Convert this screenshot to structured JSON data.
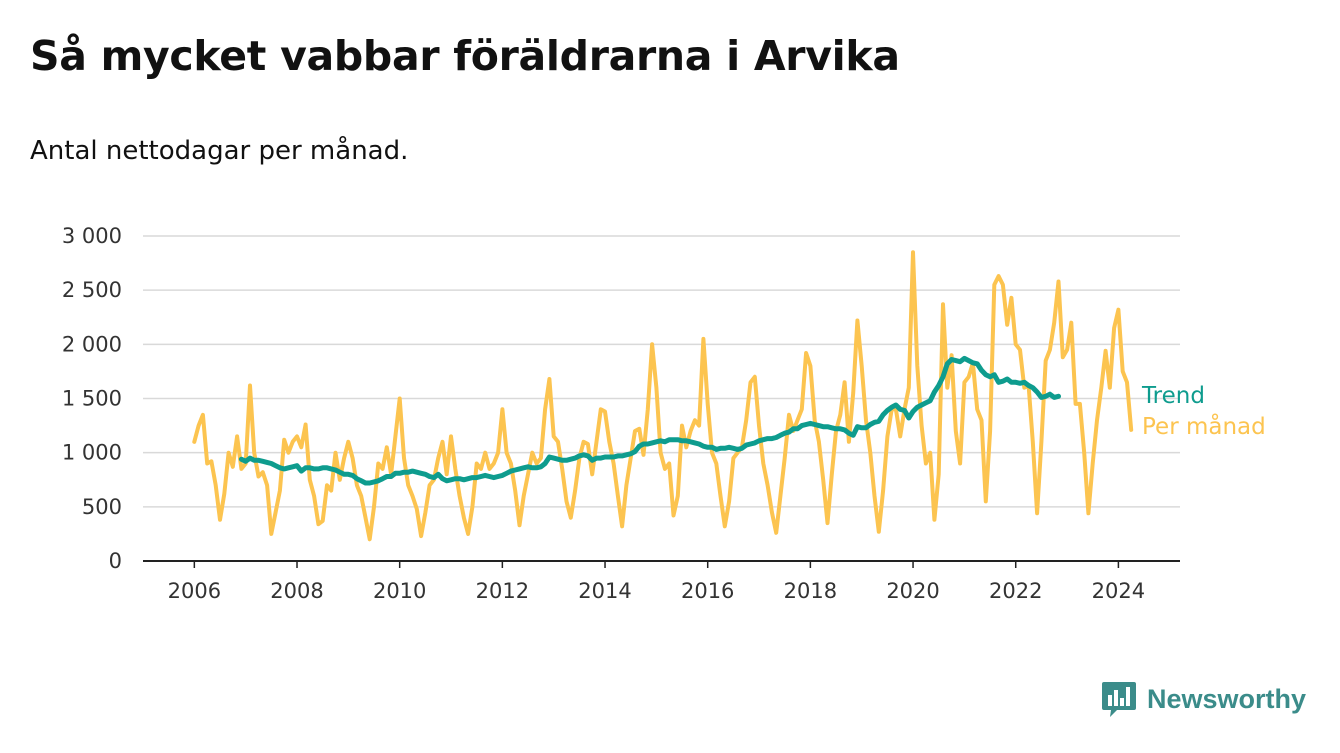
{
  "title": "Så mycket vabbar föräldrarna i Arvika",
  "subtitle": "Antal nettodagar per månad.",
  "brand": {
    "name": "Newsworthy",
    "icon": "bar-chart-speech-icon",
    "color": "#3b8c8a"
  },
  "chart_data": {
    "type": "line",
    "ylim": [
      0,
      3000
    ],
    "yticks": [
      0,
      500,
      1000,
      1500,
      2000,
      2500,
      3000
    ],
    "ytick_labels": [
      "0",
      "500",
      "1 000",
      "1 500",
      "2 000",
      "2 500",
      "3 000"
    ],
    "xlim": [
      2005.0,
      2025.2
    ],
    "xticks": [
      2006,
      2008,
      2010,
      2012,
      2014,
      2016,
      2018,
      2020,
      2022,
      2024
    ],
    "xtick_labels": [
      "2006",
      "2008",
      "2010",
      "2012",
      "2014",
      "2016",
      "2018",
      "2020",
      "2022",
      "2024"
    ],
    "grid": true,
    "legend": "end-of-line labels",
    "series": [
      {
        "name": "Per månad",
        "color": "#fcc450",
        "x_start": "2006-01",
        "values": [
          1100,
          1250,
          1350,
          900,
          920,
          700,
          380,
          620,
          1000,
          870,
          1150,
          850,
          900,
          1620,
          1000,
          780,
          820,
          700,
          250,
          450,
          650,
          1120,
          1000,
          1100,
          1150,
          1050,
          1260,
          750,
          600,
          340,
          370,
          700,
          650,
          1000,
          750,
          950,
          1100,
          950,
          700,
          600,
          400,
          200,
          500,
          900,
          850,
          1050,
          800,
          1150,
          1500,
          950,
          700,
          600,
          480,
          230,
          450,
          700,
          750,
          950,
          1100,
          800,
          1150,
          850,
          600,
          400,
          250,
          500,
          900,
          850,
          1000,
          850,
          900,
          1000,
          1400,
          1000,
          900,
          650,
          330,
          600,
          800,
          1000,
          900,
          950,
          1400,
          1680,
          1150,
          1100,
          850,
          550,
          400,
          650,
          950,
          1100,
          1080,
          800,
          1100,
          1400,
          1380,
          1100,
          900,
          600,
          320,
          700,
          950,
          1200,
          1220,
          980,
          1400,
          2000,
          1600,
          1000,
          850,
          900,
          420,
          600,
          1250,
          1050,
          1200,
          1300,
          1250,
          2050,
          1450,
          1000,
          900,
          600,
          320,
          550,
          950,
          1000,
          1050,
          1300,
          1650,
          1700,
          1250,
          900,
          700,
          450,
          260,
          600,
          950,
          1350,
          1200,
          1300,
          1400,
          1920,
          1800,
          1300,
          1100,
          750,
          350,
          800,
          1200,
          1350,
          1650,
          1100,
          1550,
          2220,
          1800,
          1300,
          1000,
          600,
          270,
          650,
          1150,
          1400,
          1400,
          1150,
          1400,
          1600,
          2850,
          1800,
          1250,
          900,
          1000,
          380,
          800,
          2370,
          1600,
          1900,
          1200,
          900,
          1650,
          1700,
          1830,
          1400,
          1300,
          550,
          1200,
          2550,
          2630,
          2550,
          2180,
          2430,
          2000,
          1950,
          1600,
          1620,
          1100,
          440,
          1100,
          1850,
          1950,
          2200,
          2580,
          1880,
          1950,
          2200,
          1450,
          1450,
          1000,
          440,
          900,
          1300,
          1600,
          1940,
          1600,
          2150,
          2320,
          1750,
          1650,
          1210
        ]
      },
      {
        "name": "Trend",
        "color": "#0e9c8e",
        "x_start": "2006-12",
        "values": [
          940,
          920,
          950,
          930,
          930,
          920,
          910,
          900,
          880,
          860,
          850,
          860,
          870,
          880,
          830,
          860,
          860,
          850,
          850,
          860,
          860,
          850,
          840,
          820,
          800,
          800,
          790,
          760,
          740,
          720,
          720,
          730,
          740,
          760,
          780,
          780,
          810,
          810,
          820,
          820,
          830,
          820,
          810,
          800,
          780,
          770,
          800,
          760,
          740,
          750,
          760,
          760,
          750,
          760,
          770,
          770,
          780,
          790,
          780,
          770,
          780,
          790,
          810,
          830,
          840,
          850,
          860,
          870,
          860,
          860,
          870,
          900,
          960,
          950,
          940,
          930,
          930,
          940,
          950,
          970,
          980,
          970,
          930,
          950,
          950,
          960,
          960,
          960,
          970,
          970,
          980,
          990,
          1010,
          1060,
          1080,
          1080,
          1090,
          1100,
          1110,
          1100,
          1120,
          1120,
          1120,
          1110,
          1110,
          1100,
          1090,
          1080,
          1060,
          1050,
          1050,
          1030,
          1040,
          1040,
          1050,
          1040,
          1030,
          1040,
          1070,
          1080,
          1090,
          1110,
          1120,
          1130,
          1130,
          1140,
          1160,
          1180,
          1190,
          1220,
          1220,
          1250,
          1260,
          1270,
          1260,
          1250,
          1240,
          1240,
          1230,
          1220,
          1220,
          1210,
          1180,
          1160,
          1240,
          1230,
          1230,
          1260,
          1280,
          1290,
          1350,
          1390,
          1420,
          1440,
          1400,
          1390,
          1320,
          1380,
          1420,
          1440,
          1460,
          1480,
          1560,
          1620,
          1700,
          1820,
          1860,
          1850,
          1840,
          1870,
          1850,
          1830,
          1820,
          1760,
          1720,
          1700,
          1720,
          1650,
          1660,
          1680,
          1650,
          1650,
          1640,
          1650,
          1620,
          1600,
          1560,
          1510,
          1520,
          1540,
          1510,
          1520
        ]
      }
    ]
  }
}
